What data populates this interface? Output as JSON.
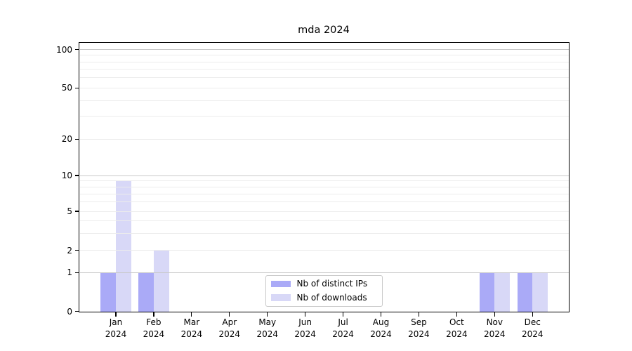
{
  "chart_data": {
    "type": "bar",
    "title": "mda 2024",
    "xlabel": "",
    "ylabel": "",
    "categories": [
      [
        "Jan",
        "2024"
      ],
      [
        "Feb",
        "2024"
      ],
      [
        "Mar",
        "2024"
      ],
      [
        "Apr",
        "2024"
      ],
      [
        "May",
        "2024"
      ],
      [
        "Jun",
        "2024"
      ],
      [
        "Jul",
        "2024"
      ],
      [
        "Aug",
        "2024"
      ],
      [
        "Sep",
        "2024"
      ],
      [
        "Oct",
        "2024"
      ],
      [
        "Nov",
        "2024"
      ],
      [
        "Dec",
        "2024"
      ]
    ],
    "series": [
      {
        "name": "Nb of distinct IPs",
        "color": "#aaaaf7",
        "values": [
          1,
          1,
          0,
          0,
          0,
          0,
          0,
          0,
          0,
          0,
          1,
          1
        ]
      },
      {
        "name": "Nb of downloads",
        "color": "#d8d8f7",
        "values": [
          9,
          2,
          0,
          0,
          0,
          0,
          0,
          0,
          0,
          0,
          1,
          1
        ]
      }
    ],
    "yaxis": {
      "scale": "log-with-zero",
      "ylim": [
        0,
        100
      ],
      "ticks": [
        0,
        1,
        2,
        5,
        10,
        20,
        50,
        100
      ],
      "major_gridlines": [
        1,
        10,
        100
      ],
      "minor_gridlines": [
        2,
        3,
        4,
        5,
        6,
        7,
        8,
        9,
        20,
        30,
        40,
        50,
        60,
        70,
        80,
        90
      ]
    },
    "legend": {
      "position": "lower center"
    },
    "grid": true,
    "colors": {
      "major_grid": "#c8c8c8",
      "minor_grid": "#ececec",
      "spine": "#000000",
      "text": "#000000",
      "background": "#ffffff"
    }
  }
}
